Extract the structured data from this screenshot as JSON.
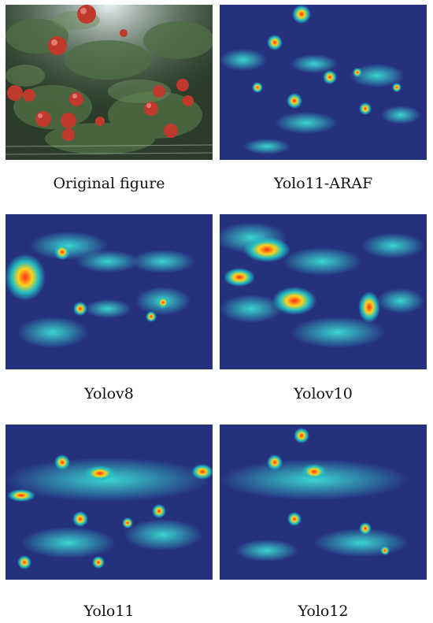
{
  "figure": {
    "panels": [
      {
        "id": "original",
        "caption": "Original figure",
        "kind": "photo"
      },
      {
        "id": "yolo11-araf",
        "caption": "Yolo11-ARAF",
        "kind": "heatmap"
      },
      {
        "id": "yolov8",
        "caption": "Yolov8",
        "kind": "heatmap"
      },
      {
        "id": "yolov10",
        "caption": "Yolov10",
        "kind": "heatmap"
      },
      {
        "id": "yolo11",
        "caption": "Yolo11",
        "kind": "heatmap"
      },
      {
        "id": "yolo12",
        "caption": "Yolo12",
        "kind": "heatmap"
      }
    ]
  },
  "colors": {
    "heat_low": "#1a237e",
    "heat_mid": "#22c1c3",
    "heat_high": "#ff3b1f",
    "apple": "#c0392b",
    "foliage": "#2e4a2f"
  }
}
